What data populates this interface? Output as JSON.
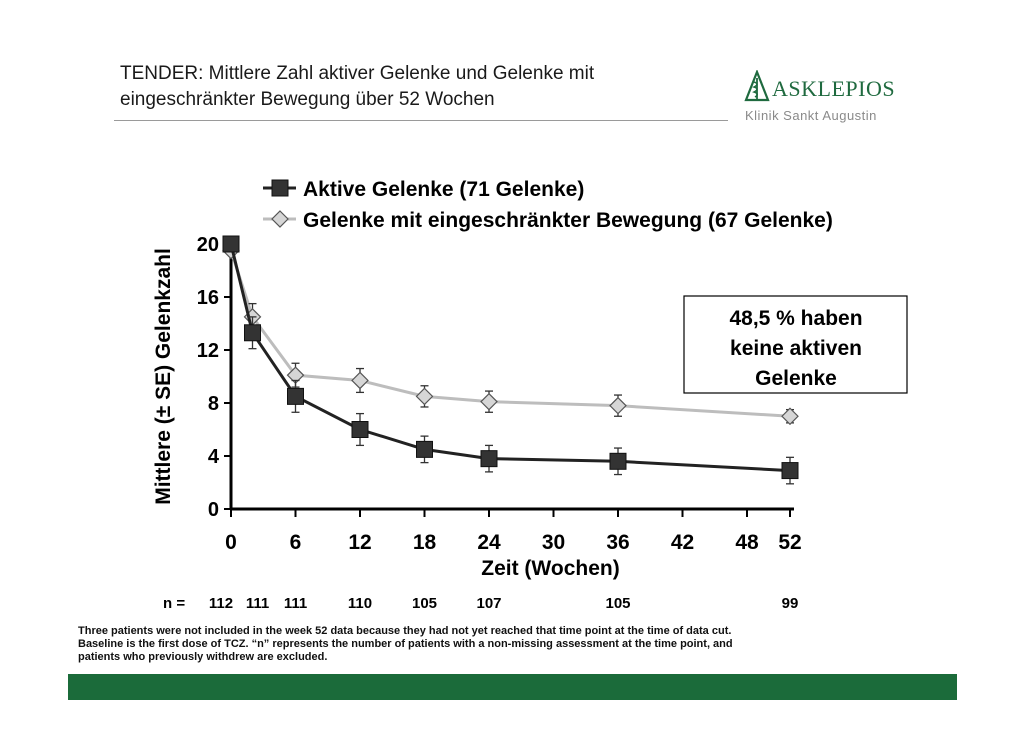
{
  "header": {
    "title_line1": "TENDER: Mittlere Zahl aktiver Gelenke und Gelenke mit",
    "title_line2": "eingeschränkter Bewegung über 52 Wochen"
  },
  "logo": {
    "name": "ASKLEPIOS",
    "subtitle": "Klinik Sankt Augustin",
    "icon": "asclepius-staff-icon",
    "color": "#1f6a3f"
  },
  "chart_data": {
    "type": "line",
    "xlabel": "Zeit (Wochen)",
    "ylabel": "Mittlere (± SE) Gelenkzahl",
    "xlim": [
      0,
      52
    ],
    "ylim": [
      0,
      20
    ],
    "x_ticks": [
      0,
      6,
      12,
      18,
      24,
      30,
      36,
      42,
      48,
      52
    ],
    "y_ticks": [
      0,
      4,
      8,
      12,
      16,
      20
    ],
    "legend_position": "top",
    "series": [
      {
        "name": "Aktive Gelenke (71 Gelenke)",
        "marker": "square",
        "color": "#222222",
        "points": [
          {
            "x": 0,
            "y": 20.0,
            "se": 0.3
          },
          {
            "x": 2,
            "y": 13.3,
            "se": 1.2
          },
          {
            "x": 6,
            "y": 8.5,
            "se": 1.2
          },
          {
            "x": 12,
            "y": 6.0,
            "se": 1.2
          },
          {
            "x": 18,
            "y": 4.5,
            "se": 1.0
          },
          {
            "x": 24,
            "y": 3.8,
            "se": 1.0
          },
          {
            "x": 36,
            "y": 3.6,
            "se": 1.0
          },
          {
            "x": 52,
            "y": 2.9,
            "se": 1.0
          }
        ]
      },
      {
        "name": "Gelenke mit eingeschränkter Bewegung  (67 Gelenke)",
        "marker": "diamond",
        "color": "#bdbdbd",
        "points": [
          {
            "x": 0,
            "y": 19.5,
            "se": 0.3
          },
          {
            "x": 2,
            "y": 14.5,
            "se": 1.0
          },
          {
            "x": 6,
            "y": 10.1,
            "se": 0.9
          },
          {
            "x": 12,
            "y": 9.7,
            "se": 0.9
          },
          {
            "x": 18,
            "y": 8.5,
            "se": 0.8
          },
          {
            "x": 24,
            "y": 8.1,
            "se": 0.8
          },
          {
            "x": 36,
            "y": 7.8,
            "se": 0.8
          },
          {
            "x": 52,
            "y": 7.0,
            "se": 0.5
          }
        ]
      }
    ],
    "n_label": "n =",
    "n_values": [
      {
        "x": 0,
        "n": "112"
      },
      {
        "x": 2,
        "n": "111"
      },
      {
        "x": 6,
        "n": "111"
      },
      {
        "x": 12,
        "n": "110"
      },
      {
        "x": 18,
        "n": "105"
      },
      {
        "x": 24,
        "n": "107"
      },
      {
        "x": 36,
        "n": "105"
      },
      {
        "x": 52,
        "n": "99"
      }
    ],
    "annotation": {
      "lines": [
        "48,5 % haben",
        "keine aktiven",
        "Gelenke"
      ]
    }
  },
  "footnote": "Three patients were not included in the week 52 data because they had not yet reached that time point at the time of data cut. Baseline is the first dose of TCZ. “n” represents the number of patients with a non-missing assessment at the time point, and patients who previously withdrew are excluded.",
  "colors": {
    "footer_bar": "#1b6b3a",
    "axis": "#000000"
  }
}
